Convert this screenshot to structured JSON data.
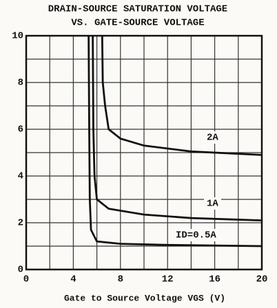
{
  "chart_data": {
    "type": "line",
    "title": [
      "DRAIN-SOURCE SATURATION VOLTAGE",
      "VS. GATE-SOURCE VOLTAGE"
    ],
    "x_label": "Gate to Source Voltage VGS (V)",
    "xlim": [
      0,
      20
    ],
    "xticks": [
      0,
      4,
      8,
      12,
      16,
      20
    ],
    "xminor": [
      2,
      6,
      10,
      14,
      18
    ],
    "ylim": [
      0,
      10
    ],
    "yticks": [
      0,
      2,
      4,
      6,
      8,
      10
    ],
    "yminor": [
      1,
      3,
      5,
      7,
      9
    ],
    "grid": true,
    "series": [
      {
        "name": "2A",
        "color": "#111111",
        "x": [
          6.45,
          6.5,
          6.7,
          7,
          8,
          10,
          14,
          20
        ],
        "values": [
          10,
          8,
          7,
          6.0,
          5.6,
          5.3,
          5.05,
          4.9
        ]
      },
      {
        "name": "1A",
        "color": "#111111",
        "x": [
          5.65,
          5.7,
          5.8,
          6,
          7,
          10,
          14,
          20
        ],
        "values": [
          10,
          6,
          4,
          3.0,
          2.6,
          2.35,
          2.2,
          2.1
        ]
      },
      {
        "name": "ID=0.5A",
        "color": "#111111",
        "x": [
          5.3,
          5.35,
          5.4,
          5.5,
          6,
          8,
          12,
          20
        ],
        "values": [
          10,
          6,
          3,
          1.7,
          1.2,
          1.1,
          1.05,
          1.0
        ]
      }
    ]
  }
}
